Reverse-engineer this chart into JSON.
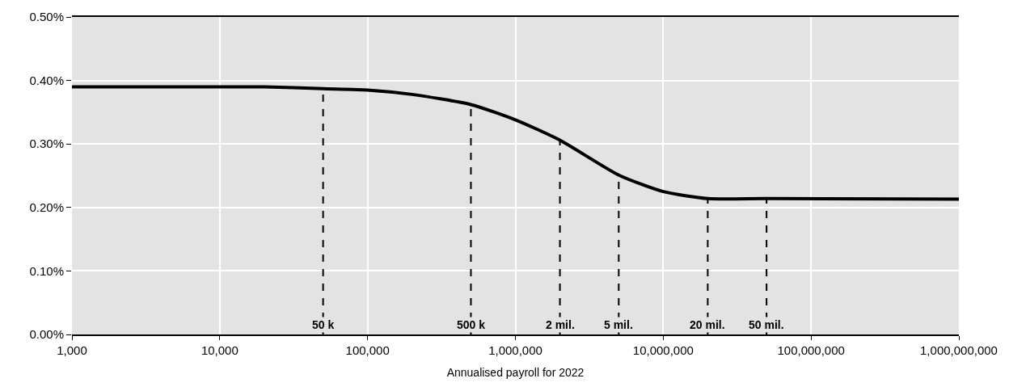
{
  "chart_data": {
    "type": "line",
    "xlabel": "Annualised payroll for 2022",
    "log": "x",
    "grid": true,
    "marker": "none",
    "line_style": "solid",
    "xlim": [
      1000,
      1000000000
    ],
    "xticks": [
      {
        "value": 1000,
        "label": "1,000"
      },
      {
        "value": 10000,
        "label": "10,000"
      },
      {
        "value": 100000,
        "label": "100,000"
      },
      {
        "value": 1000000,
        "label": "1,000,000"
      },
      {
        "value": 10000000,
        "label": "10,000,000"
      },
      {
        "value": 100000000,
        "label": "100,000,000"
      },
      {
        "value": 1000000000,
        "label": "1,000,000,000"
      }
    ],
    "ylim": [
      0,
      0.5
    ],
    "yticks": [
      {
        "value": 0,
        "label": "0.00%"
      },
      {
        "value": 0.1,
        "label": "0.10%"
      },
      {
        "value": 0.2,
        "label": "0.20%"
      },
      {
        "value": 0.3,
        "label": "0.30%"
      },
      {
        "value": 0.4,
        "label": "0.40%"
      },
      {
        "value": 0.5,
        "label": "0.50%"
      }
    ],
    "series": [
      {
        "color": "#000000",
        "x": [
          1000,
          10000,
          20000,
          50000,
          100000,
          200000,
          500000,
          1000000,
          2000000,
          5000000,
          10000000,
          20000000,
          50000000,
          1000000000
        ],
        "values": [
          0.39,
          0.39,
          0.39,
          0.387,
          0.385,
          0.378,
          0.362,
          0.338,
          0.306,
          0.251,
          0.225,
          0.214,
          0.214,
          0.213
        ]
      }
    ],
    "annotations": [
      {
        "text": "50 k",
        "x": 50000,
        "y": 0.387
      },
      {
        "text": "500 k",
        "x": 500000,
        "y": 0.362
      },
      {
        "text": "2 mil.",
        "x": 2000000,
        "y": 0.306
      },
      {
        "text": "5 mil.",
        "x": 5000000,
        "y": 0.251
      },
      {
        "text": "20 mil.",
        "x": 20000000,
        "y": 0.214
      },
      {
        "text": "50 mil.",
        "x": 50000000,
        "y": 0.214
      }
    ]
  }
}
